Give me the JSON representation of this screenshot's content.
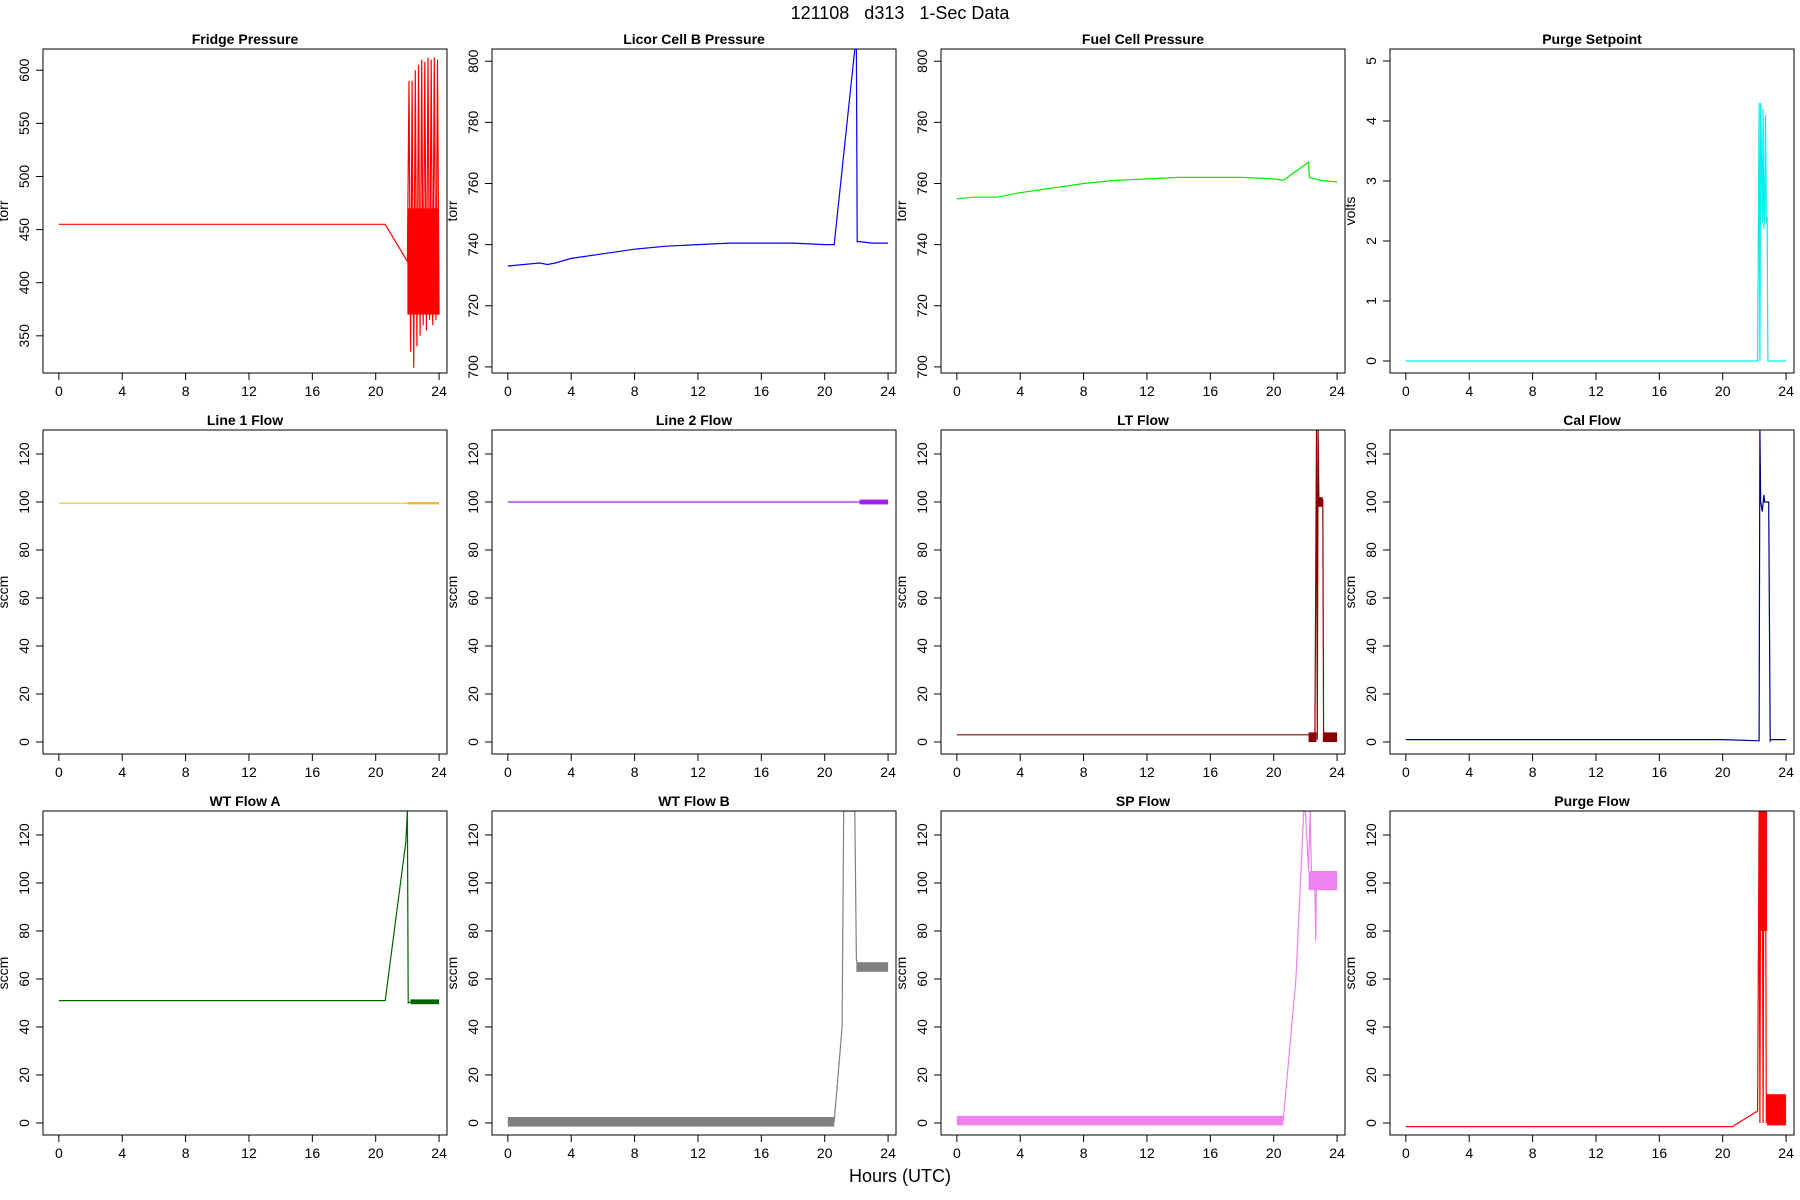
{
  "header": {
    "title": "121108   d313   1-Sec Data",
    "xlabel": "Hours (UTC)"
  },
  "chart_data": [
    {
      "type": "line",
      "title": "Fridge Pressure",
      "xlabel": "",
      "ylabel": "torr",
      "color": "#ff0000",
      "xlim": [
        -1,
        24.5
      ],
      "ylim": [
        315,
        620
      ],
      "xticks": [
        0,
        4,
        8,
        12,
        16,
        20,
        24
      ],
      "yticks": [
        350,
        400,
        450,
        500,
        550,
        600
      ],
      "series": [
        {
          "x": [
            0,
            20.6,
            22.0,
            22.1,
            22.2,
            22.3,
            22.4,
            22.5,
            22.6,
            22.7,
            22.8,
            22.9,
            23.0,
            23.1,
            23.2,
            23.3,
            23.4,
            23.5,
            23.6,
            23.7,
            23.8,
            23.9,
            24.0
          ],
          "y": [
            455,
            455,
            420,
            590,
            335,
            590,
            320,
            600,
            340,
            605,
            350,
            610,
            360,
            608,
            355,
            612,
            365,
            610,
            360,
            612,
            365,
            610,
            370
          ]
        }
      ],
      "bands": [
        {
          "x": [
            22.0,
            24.0
          ],
          "y": [
            370,
            470
          ]
        }
      ]
    },
    {
      "type": "line",
      "title": "Licor Cell B Pressure",
      "xlabel": "",
      "ylabel": "torr",
      "color": "#0000ff",
      "xlim": [
        -1,
        24.5
      ],
      "ylim": [
        698,
        804
      ],
      "xticks": [
        0,
        4,
        8,
        12,
        16,
        20,
        24
      ],
      "yticks": [
        700,
        720,
        740,
        760,
        780,
        800
      ],
      "series": [
        {
          "x": [
            0,
            1,
            2,
            2.5,
            3,
            4,
            6,
            8,
            10,
            12,
            14,
            16,
            18,
            20,
            20.6,
            21.9,
            22.0,
            22.05,
            22.2,
            23,
            24
          ],
          "y": [
            733,
            733.5,
            734,
            733.5,
            734,
            735.5,
            737,
            738.5,
            739.5,
            740,
            740.5,
            740.5,
            740.5,
            740,
            740,
            804,
            804,
            741,
            741,
            740.5,
            740.5
          ]
        }
      ],
      "bands": []
    },
    {
      "type": "line",
      "title": "Fuel Cell Pressure",
      "xlabel": "",
      "ylabel": "torr",
      "color": "#00ee00",
      "xlim": [
        -1,
        24.5
      ],
      "ylim": [
        698,
        804
      ],
      "xticks": [
        0,
        4,
        8,
        12,
        16,
        20,
        24
      ],
      "yticks": [
        700,
        720,
        740,
        760,
        780,
        800
      ],
      "series": [
        {
          "x": [
            0,
            1,
            2,
            2.5,
            3,
            4,
            6,
            8,
            10,
            12,
            14,
            16,
            18,
            20,
            20.6,
            22.2,
            22.25,
            23,
            24
          ],
          "y": [
            755,
            755.5,
            755.5,
            755.5,
            756,
            757,
            758.5,
            760,
            761,
            761.5,
            762,
            762,
            762,
            761.5,
            761,
            767,
            762,
            761,
            760.5
          ]
        }
      ],
      "bands": []
    },
    {
      "type": "line",
      "title": "Purge Setpoint",
      "xlabel": "",
      "ylabel": "volts",
      "color": "#00eeee",
      "xlim": [
        -1,
        24.5
      ],
      "ylim": [
        -0.2,
        5.2
      ],
      "xticks": [
        0,
        4,
        8,
        12,
        16,
        20,
        24
      ],
      "yticks": [
        0,
        1,
        2,
        3,
        4,
        5
      ],
      "series": [
        {
          "x": [
            0,
            22.2,
            22.3,
            22.35,
            22.4,
            22.5,
            22.55,
            22.6,
            22.65,
            22.7,
            22.75,
            22.8,
            22.85,
            22.9,
            23.0,
            24.0
          ],
          "y": [
            0,
            0,
            4.3,
            0,
            4.3,
            2.3,
            4.2,
            2.2,
            2.5,
            4.1,
            2.3,
            2.4,
            0,
            0,
            0,
            0
          ]
        }
      ],
      "bands": []
    },
    {
      "type": "line",
      "title": "Line 1 Flow",
      "xlabel": "",
      "ylabel": "sccm",
      "color": "#eebb33",
      "xlim": [
        -1,
        24.5
      ],
      "ylim": [
        -5,
        130
      ],
      "xticks": [
        0,
        4,
        8,
        12,
        16,
        20,
        24
      ],
      "yticks": [
        0,
        20,
        40,
        60,
        80,
        100,
        120
      ],
      "series": [
        {
          "x": [
            0,
            24
          ],
          "y": [
            99.5,
            99.5
          ]
        }
      ],
      "bands": [
        {
          "x": [
            22.0,
            24.0
          ],
          "y": [
            99,
            100
          ]
        }
      ]
    },
    {
      "type": "line",
      "title": "Line 2 Flow",
      "xlabel": "",
      "ylabel": "sccm",
      "color": "#a020f0",
      "xlim": [
        -1,
        24.5
      ],
      "ylim": [
        -5,
        130
      ],
      "xticks": [
        0,
        4,
        8,
        12,
        16,
        20,
        24
      ],
      "yticks": [
        0,
        20,
        40,
        60,
        80,
        100,
        120
      ],
      "series": [
        {
          "x": [
            0,
            24
          ],
          "y": [
            100,
            100
          ]
        }
      ],
      "bands": [
        {
          "x": [
            22.2,
            24.0
          ],
          "y": [
            99,
            101
          ]
        }
      ]
    },
    {
      "type": "line",
      "title": "LT Flow",
      "xlabel": "",
      "ylabel": "sccm",
      "color": "#8b0000",
      "xlim": [
        -1,
        24.5
      ],
      "ylim": [
        -5,
        130
      ],
      "xticks": [
        0,
        4,
        8,
        12,
        16,
        20,
        24
      ],
      "yticks": [
        0,
        20,
        40,
        60,
        80,
        100,
        120
      ],
      "series": [
        {
          "x": [
            0,
            22.2,
            22.6,
            22.7,
            22.75,
            22.8,
            22.85,
            23.1,
            23.15,
            24.0
          ],
          "y": [
            3,
            3,
            3,
            130,
            1,
            130,
            101,
            101,
            1,
            1
          ]
        }
      ],
      "bands": [
        {
          "x": [
            22.2,
            22.7
          ],
          "y": [
            0,
            4
          ]
        },
        {
          "x": [
            22.8,
            23.1
          ],
          "y": [
            98,
            102
          ]
        },
        {
          "x": [
            23.1,
            24.0
          ],
          "y": [
            0,
            4
          ]
        }
      ]
    },
    {
      "type": "line",
      "title": "Cal Flow",
      "xlabel": "",
      "ylabel": "sccm",
      "color": "#000080",
      "xlim": [
        -1,
        24.5
      ],
      "ylim": [
        -5,
        130
      ],
      "xticks": [
        0,
        4,
        8,
        12,
        16,
        20,
        24
      ],
      "yticks": [
        0,
        20,
        40,
        60,
        80,
        100,
        120
      ],
      "series": [
        {
          "x": [
            0,
            20,
            22.3,
            22.35,
            22.4,
            22.5,
            22.6,
            22.65,
            22.7,
            22.9,
            23.0,
            23.05,
            24.0
          ],
          "y": [
            1,
            1,
            0.5,
            130,
            100,
            96,
            103,
            100,
            100,
            100,
            0.5,
            1,
            1
          ]
        }
      ],
      "bands": []
    },
    {
      "type": "line",
      "title": "WT Flow A",
      "xlabel": "",
      "ylabel": "sccm",
      "color": "#006400",
      "xlim": [
        -1,
        24.5
      ],
      "ylim": [
        -5,
        130
      ],
      "xticks": [
        0,
        4,
        8,
        12,
        16,
        20,
        24
      ],
      "yticks": [
        0,
        20,
        40,
        60,
        80,
        100,
        120
      ],
      "series": [
        {
          "x": [
            0,
            20.6,
            21.9,
            22.0,
            22.05,
            22.2,
            24.0
          ],
          "y": [
            51,
            51,
            117,
            130,
            50,
            50.5,
            50.5
          ]
        }
      ],
      "bands": [
        {
          "x": [
            22.2,
            24.0
          ],
          "y": [
            49.5,
            51.5
          ]
        }
      ]
    },
    {
      "type": "line",
      "title": "WT Flow B",
      "xlabel": "",
      "ylabel": "sccm",
      "color": "#808080",
      "xlim": [
        -1,
        24.5
      ],
      "ylim": [
        -5,
        130
      ],
      "xticks": [
        0,
        4,
        8,
        12,
        16,
        20,
        24
      ],
      "yticks": [
        0,
        20,
        40,
        60,
        80,
        100,
        120
      ],
      "series": [
        {
          "x": [
            0,
            20.6,
            21.1,
            21.2,
            21.85,
            21.9,
            22.0,
            22.1,
            23,
            24
          ],
          "y": [
            0.5,
            0.5,
            40,
            130,
            130,
            130,
            68,
            65,
            65,
            64.5
          ]
        }
      ],
      "bands": [
        {
          "x": [
            0,
            20.6
          ],
          "y": [
            -1.5,
            2.5
          ]
        },
        {
          "x": [
            22.0,
            24.0
          ],
          "y": [
            63,
            67
          ]
        }
      ]
    },
    {
      "type": "line",
      "title": "SP Flow",
      "xlabel": "",
      "ylabel": "sccm",
      "color": "#ee82ee",
      "xlim": [
        -1,
        24.5
      ],
      "ylim": [
        -5,
        130
      ],
      "xticks": [
        0,
        4,
        8,
        12,
        16,
        20,
        24
      ],
      "yticks": [
        0,
        20,
        40,
        60,
        80,
        100,
        120
      ],
      "series": [
        {
          "x": [
            0,
            20.6,
            21.4,
            21.9,
            22.0,
            22.2,
            22.3,
            22.4,
            22.6,
            22.65,
            22.7,
            22.8,
            23.0,
            24.0
          ],
          "y": [
            1,
            1,
            60,
            130,
            130,
            105,
            130,
            100,
            98,
            76,
            102,
            100,
            102,
            100
          ]
        }
      ],
      "bands": [
        {
          "x": [
            0,
            20.6
          ],
          "y": [
            -1,
            3
          ]
        },
        {
          "x": [
            22.2,
            24.0
          ],
          "y": [
            97,
            105
          ]
        }
      ]
    },
    {
      "type": "line",
      "title": "Purge Flow",
      "xlabel": "",
      "ylabel": "sccm",
      "color": "#ff0000",
      "xlim": [
        -1,
        24.5
      ],
      "ylim": [
        -5,
        130
      ],
      "xticks": [
        0,
        4,
        8,
        12,
        16,
        20,
        24
      ],
      "yticks": [
        0,
        20,
        40,
        60,
        80,
        100,
        120
      ],
      "series": [
        {
          "x": [
            0,
            20.6,
            22.2,
            22.3,
            22.35,
            22.4,
            22.45,
            22.5,
            22.55,
            22.6,
            22.65,
            22.7,
            22.75,
            22.8,
            22.85,
            22.9,
            24.0
          ],
          "y": [
            -1.5,
            -1.5,
            5,
            130,
            0,
            130,
            80,
            125,
            0,
            130,
            85,
            128,
            0,
            12,
            -1,
            10,
            5
          ]
        }
      ],
      "bands": [
        {
          "x": [
            22.3,
            22.8
          ],
          "y": [
            80,
            130
          ]
        },
        {
          "x": [
            22.8,
            24.0
          ],
          "y": [
            -1,
            12
          ]
        }
      ]
    }
  ]
}
